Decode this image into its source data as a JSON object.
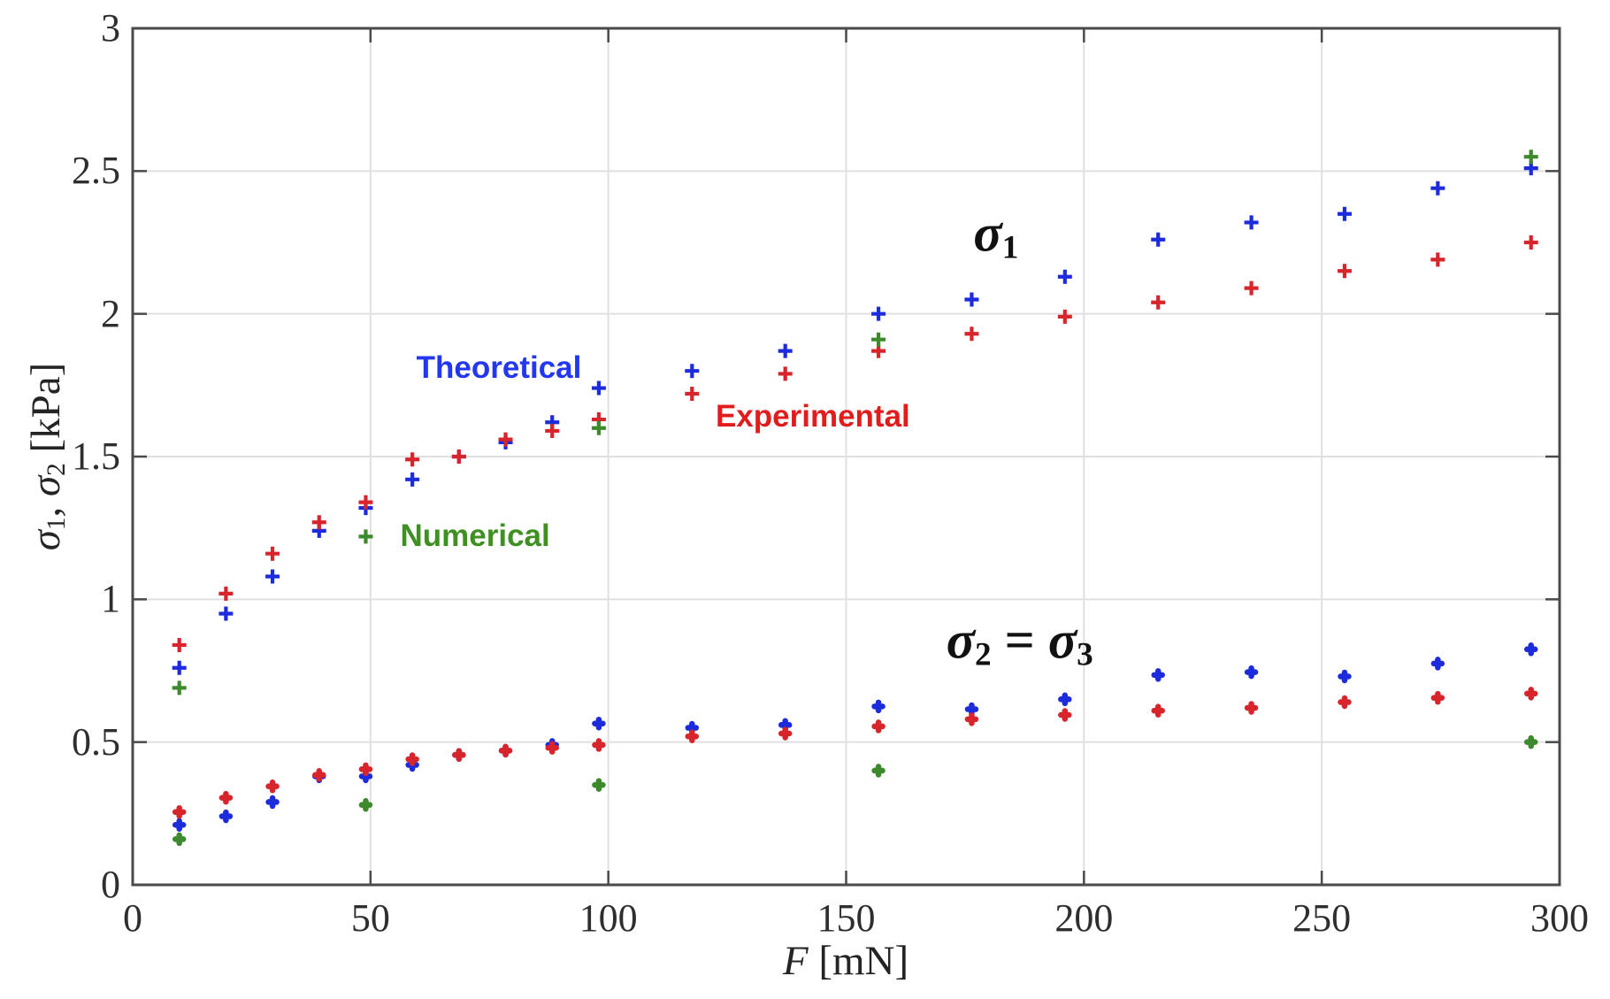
{
  "figure": {
    "background": "#ffffff",
    "frame_color": "#4a4a4a",
    "grid_color": "#e0e0e0",
    "tick_label_color": "#2e2e2e"
  },
  "chart_data": {
    "type": "scatter",
    "title": "",
    "xlabel": "F [mN]",
    "ylabel": "sigma1, sigma2 [kPa]",
    "xlim": [
      0,
      300
    ],
    "ylim": [
      0,
      3
    ],
    "xticks": [
      0,
      50,
      100,
      150,
      200,
      250,
      300
    ],
    "yticks": [
      0,
      0.5,
      1,
      1.5,
      2,
      2.5,
      3
    ],
    "xtick_labels": [
      "0",
      "50",
      "100",
      "150",
      "200",
      "250",
      "300"
    ],
    "ytick_labels": [
      "0",
      "0.5",
      "1",
      "1.5",
      "2",
      "2.5",
      "3"
    ],
    "grid": true,
    "legend_position": "inline-annotations",
    "series": [
      {
        "name": "Theoretical",
        "quantity": "sigma2",
        "color": "#1c2bdc",
        "marker": "plus-thick",
        "x": [
          9.8,
          19.6,
          29.4,
          39.2,
          49,
          58.8,
          68.6,
          78.4,
          88.2,
          98,
          117.6,
          137.2,
          156.8,
          176.4,
          196,
          215.6,
          235.2,
          254.8,
          274.4,
          294
        ],
        "y": [
          0.21,
          0.24,
          0.29,
          0.38,
          0.38,
          0.42,
          0.455,
          0.47,
          0.49,
          0.565,
          0.55,
          0.56,
          0.625,
          0.615,
          0.65,
          0.735,
          0.745,
          0.73,
          0.775,
          0.825
        ]
      },
      {
        "name": "Experimental",
        "quantity": "sigma2",
        "color": "#d7252b",
        "marker": "plus-thick",
        "x": [
          9.8,
          19.6,
          29.4,
          39.2,
          49,
          58.8,
          68.6,
          78.4,
          88.2,
          98,
          117.6,
          137.2,
          156.8,
          176.4,
          196,
          215.6,
          235.2,
          254.8,
          274.4,
          294
        ],
        "y": [
          0.255,
          0.305,
          0.345,
          0.385,
          0.405,
          0.44,
          0.455,
          0.47,
          0.48,
          0.49,
          0.52,
          0.53,
          0.555,
          0.58,
          0.595,
          0.61,
          0.62,
          0.64,
          0.655,
          0.67
        ]
      },
      {
        "name": "Numerical",
        "quantity": "sigma2",
        "color": "#3d8a2d",
        "marker": "plus-thick",
        "x": [
          9.8,
          49,
          98,
          156.8,
          294
        ],
        "y": [
          0.16,
          0.28,
          0.35,
          0.4,
          0.5
        ]
      },
      {
        "name": "Theoretical",
        "quantity": "sigma1",
        "color": "#1c2bdc",
        "marker": "plus",
        "x": [
          9.8,
          19.6,
          29.4,
          39.2,
          49,
          58.8,
          68.6,
          78.4,
          88.2,
          98,
          117.6,
          137.2,
          156.8,
          176.4,
          196,
          215.6,
          235.2,
          254.8,
          274.4,
          294
        ],
        "y": [
          0.76,
          0.95,
          1.08,
          1.24,
          1.32,
          1.42,
          1.5,
          1.55,
          1.62,
          1.74,
          1.8,
          1.87,
          2.0,
          2.05,
          2.13,
          2.26,
          2.32,
          2.35,
          2.44,
          2.51
        ]
      },
      {
        "name": "Experimental",
        "quantity": "sigma1",
        "color": "#d7252b",
        "marker": "plus",
        "x": [
          9.8,
          19.6,
          29.4,
          39.2,
          49,
          58.8,
          68.6,
          78.4,
          88.2,
          98,
          117.6,
          137.2,
          156.8,
          176.4,
          196,
          215.6,
          235.2,
          254.8,
          274.4,
          294
        ],
        "y": [
          0.84,
          1.02,
          1.16,
          1.27,
          1.34,
          1.49,
          1.5,
          1.56,
          1.59,
          1.63,
          1.72,
          1.79,
          1.87,
          1.93,
          1.99,
          2.04,
          2.09,
          2.15,
          2.19,
          2.25
        ]
      },
      {
        "name": "Numerical",
        "quantity": "sigma1",
        "color": "#3d8a2d",
        "marker": "plus",
        "x": [
          9.8,
          49,
          98,
          156.8,
          294
        ],
        "y": [
          0.69,
          1.22,
          1.6,
          1.91,
          2.55
        ]
      }
    ],
    "annotations": [
      {
        "id": "theoretical-label",
        "text": "Theoretical",
        "parts": [
          {
            "text": "Theoretical",
            "style": ""
          }
        ],
        "color": "#2336f0",
        "x": 77,
        "y": 1.81,
        "font_px": 35,
        "family": "sans"
      },
      {
        "id": "experimental-label",
        "text": "Experimental",
        "parts": [
          {
            "text": "Experimental",
            "style": ""
          }
        ],
        "color": "#e01c1c",
        "x": 143,
        "y": 1.64,
        "font_px": 35,
        "family": "sans"
      },
      {
        "id": "numerical-label",
        "text": "Numerical",
        "parts": [
          {
            "text": "Numerical",
            "style": ""
          }
        ],
        "color": "#3f9023",
        "x": 72,
        "y": 1.22,
        "font_px": 35,
        "family": "sans"
      },
      {
        "id": "sigma1-label",
        "text": "σ1",
        "parts": [
          {
            "text": "σ",
            "style": "ib"
          },
          {
            "text": "1",
            "style": "bs"
          }
        ],
        "color": "#111111",
        "x": 181.5,
        "y": 2.28,
        "font_px": 60,
        "family": "serif"
      },
      {
        "id": "sigma2-sigma3-label",
        "text": "σ2 = σ3",
        "parts": [
          {
            "text": "σ",
            "style": "ib"
          },
          {
            "text": "2",
            "style": "bs"
          },
          {
            "text": " = ",
            "style": "b"
          },
          {
            "text": "σ",
            "style": "ib"
          },
          {
            "text": "3",
            "style": "bs"
          }
        ],
        "color": "#111111",
        "x": 186.5,
        "y": 0.855,
        "font_px": 60,
        "family": "serif"
      }
    ],
    "ylabel_parts": [
      {
        "text": "σ",
        "style": "i"
      },
      {
        "text": "1",
        "style": "s"
      },
      {
        "text": ", ",
        "style": ""
      },
      {
        "text": "σ",
        "style": "i"
      },
      {
        "text": "2",
        "style": "s"
      },
      {
        "text": " [kPa]",
        "style": ""
      }
    ],
    "xlabel_parts": [
      {
        "text": "F",
        "style": "i"
      },
      {
        "text": " [mN]",
        "style": ""
      }
    ]
  }
}
